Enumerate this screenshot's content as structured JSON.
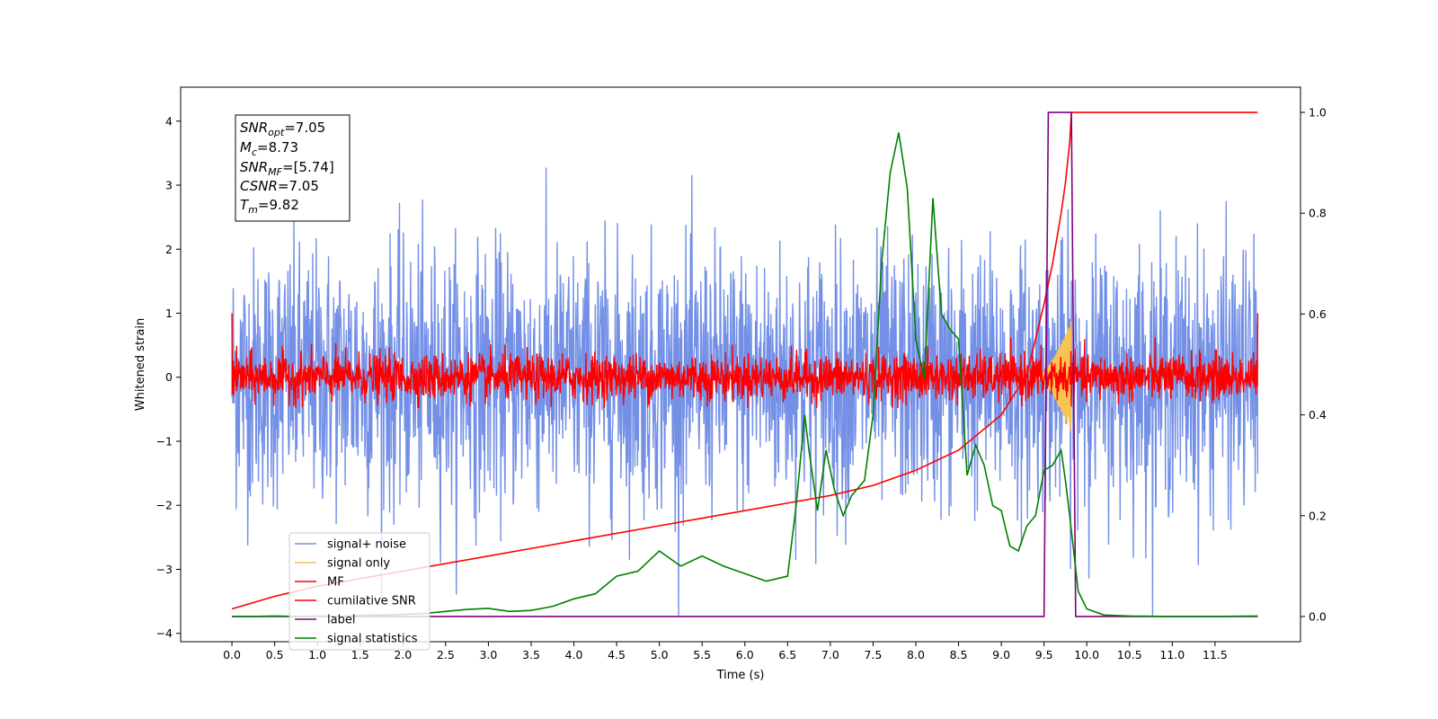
{
  "chart_data": {
    "type": "line",
    "xlabel": "Time (s)",
    "ylabel": "Whitened strain",
    "xlim": [
      -0.6,
      12.5
    ],
    "ylim": [
      -4.13,
      4.53
    ],
    "y2lim": [
      -0.05,
      1.05
    ],
    "x_ticks": [
      "0.0",
      "0.5",
      "1.0",
      "1.5",
      "2.0",
      "2.5",
      "3.0",
      "3.5",
      "4.0",
      "4.5",
      "5.0",
      "5.5",
      "6.0",
      "6.5",
      "7.0",
      "7.5",
      "8.0",
      "8.5",
      "9.0",
      "9.5",
      "10.0",
      "10.5",
      "11.0",
      "11.5"
    ],
    "y_ticks": [
      "4",
      "3",
      "2",
      "1",
      "0",
      "−1",
      "−2",
      "−3",
      "−4"
    ],
    "y2_ticks": [
      "1.0",
      "0.8",
      "0.6",
      "0.4",
      "0.2",
      "0.0"
    ],
    "grid": false,
    "legend_position": "lower-left",
    "info_box": {
      "snr_opt": {
        "name": "SNR",
        "sub": "opt",
        "value": "=7.05"
      },
      "mc": {
        "name": "M",
        "sub": "c",
        "value": "=8.73"
      },
      "snr_mf": {
        "name": "SNR",
        "sub": "MF",
        "value": "=[5.74]"
      },
      "csnr": {
        "name": "CSNR",
        "sub": "",
        "value": "=7.05"
      },
      "tm": {
        "name": "T",
        "sub": "m",
        "value": "=9.82"
      }
    },
    "series": [
      {
        "name": "signal+ noise",
        "color": "#7390e6",
        "axis": "left",
        "kind": "noise",
        "x_range": [
          0,
          12
        ],
        "sigma": 1.0,
        "peak": 4.17
      },
      {
        "name": "signal only",
        "color": "#f5c451",
        "axis": "left",
        "kind": "chirp",
        "x_range": [
          9.4,
          9.82
        ],
        "peak_amplitude": 0.9
      },
      {
        "name": "MF",
        "color": "#ff0000",
        "axis": "left",
        "kind": "noise",
        "x_range": [
          0,
          12
        ],
        "sigma": 0.18,
        "peak": 1.0
      },
      {
        "name": "cumilative SNR",
        "color": "#ff0000",
        "axis": "right",
        "x": [
          0.0,
          0.5,
          1.0,
          1.5,
          2.0,
          2.5,
          3.0,
          3.5,
          4.0,
          4.5,
          5.0,
          5.5,
          6.0,
          6.5,
          7.0,
          7.5,
          8.0,
          8.5,
          9.0,
          9.3,
          9.5,
          9.6,
          9.7,
          9.75,
          9.8,
          9.82,
          12.0
        ],
        "values": [
          0.015,
          0.04,
          0.06,
          0.075,
          0.09,
          0.105,
          0.12,
          0.135,
          0.15,
          0.165,
          0.18,
          0.195,
          0.21,
          0.225,
          0.24,
          0.26,
          0.29,
          0.33,
          0.4,
          0.48,
          0.62,
          0.7,
          0.8,
          0.86,
          0.94,
          1.0,
          1.0
        ]
      },
      {
        "name": "label",
        "color": "#800080",
        "axis": "right",
        "x": [
          0.0,
          9.5,
          9.55,
          9.82,
          9.87,
          12.0
        ],
        "values": [
          0.0,
          0.0,
          1.0,
          1.0,
          0.0,
          0.0
        ]
      },
      {
        "name": "signal statistics",
        "color": "#008000",
        "axis": "right",
        "x": [
          0.0,
          0.25,
          0.5,
          0.75,
          1.0,
          1.25,
          1.5,
          1.75,
          2.0,
          2.25,
          2.5,
          2.75,
          3.0,
          3.25,
          3.5,
          3.75,
          4.0,
          4.25,
          4.5,
          4.75,
          5.0,
          5.25,
          5.5,
          5.75,
          6.0,
          6.25,
          6.5,
          6.6,
          6.7,
          6.75,
          6.85,
          6.95,
          7.05,
          7.15,
          7.25,
          7.4,
          7.5,
          7.6,
          7.7,
          7.8,
          7.9,
          8.0,
          8.1,
          8.2,
          8.3,
          8.4,
          8.5,
          8.6,
          8.7,
          8.8,
          8.9,
          9.0,
          9.1,
          9.2,
          9.3,
          9.4,
          9.5,
          9.6,
          9.7,
          9.75,
          9.8,
          9.9,
          10.0,
          10.2,
          10.5,
          11.0,
          11.5,
          12.0
        ],
        "values": [
          0.0,
          0.0,
          0.001,
          0.0,
          0.001,
          0.0,
          0.002,
          0.003,
          0.004,
          0.006,
          0.01,
          0.014,
          0.016,
          0.01,
          0.012,
          0.02,
          0.035,
          0.045,
          0.08,
          0.09,
          0.13,
          0.1,
          0.12,
          0.1,
          0.085,
          0.07,
          0.08,
          0.22,
          0.4,
          0.33,
          0.21,
          0.33,
          0.25,
          0.2,
          0.24,
          0.27,
          0.4,
          0.7,
          0.88,
          0.96,
          0.85,
          0.55,
          0.47,
          0.83,
          0.6,
          0.57,
          0.55,
          0.28,
          0.34,
          0.3,
          0.22,
          0.21,
          0.14,
          0.13,
          0.18,
          0.2,
          0.29,
          0.3,
          0.33,
          0.27,
          0.2,
          0.05,
          0.015,
          0.003,
          0.001,
          0.0,
          0.0,
          0.001
        ]
      }
    ]
  }
}
